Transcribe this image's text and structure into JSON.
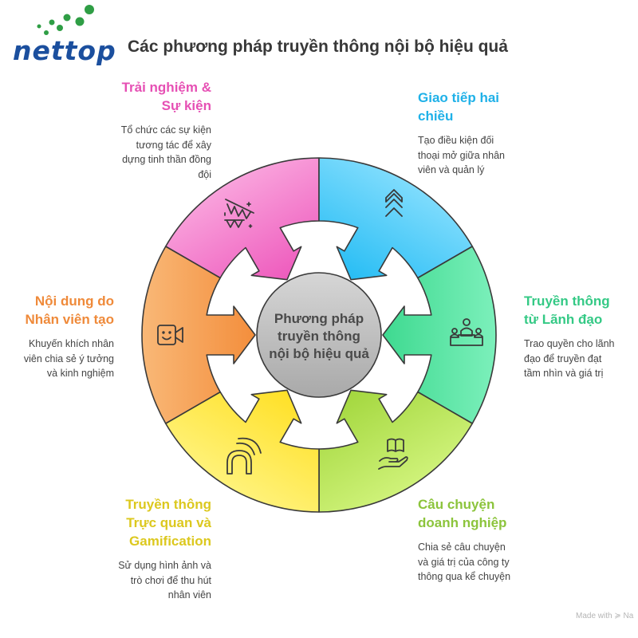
{
  "header": {
    "logo": "nettop",
    "title": "Các phương pháp truyền thông nội bộ hiệu quả"
  },
  "center": {
    "lines": [
      "Phương pháp",
      "truyền thông",
      "nội bộ hiệu quả"
    ]
  },
  "segments": [
    {
      "id": "events",
      "icon": "party-bunting-icon",
      "color": "#e650b4",
      "fill": [
        "#f9a3dc",
        "#ee5bbd"
      ],
      "title": [
        "Trải nghiệm &",
        "Sự kiện"
      ],
      "desc": [
        "Tổ chức các sự kiện",
        "tương tác để xây",
        "dựng tinh thần đồng",
        "đội"
      ]
    },
    {
      "id": "two-way",
      "icon": "chevrons-up-icon",
      "color": "#1fb1e8",
      "fill": [
        "#7fdcfd",
        "#27bdf4"
      ],
      "title": [
        "Giao tiếp hai",
        "chiều"
      ],
      "desc": [
        "Tạo điều kiện đối",
        "thoại mở giữa nhân",
        "viên và quản lý"
      ]
    },
    {
      "id": "leadership",
      "icon": "podium-people-icon",
      "color": "#34c985",
      "fill": [
        "#7cf0bb",
        "#3ed990"
      ],
      "title": [
        "Truyền thông",
        "từ Lãnh đạo"
      ],
      "desc": [
        "Trao quyền cho lãnh",
        "đạo để truyền đạt",
        "tầm nhìn và giá trị"
      ]
    },
    {
      "id": "storytelling",
      "icon": "hand-book-icon",
      "color": "#8cc43c",
      "fill": [
        "#cff279",
        "#a3d73e"
      ],
      "title": [
        "Câu chuyện",
        "doanh nghiệp"
      ],
      "desc": [
        "Chia sẻ câu chuyện",
        "và giá trị của công ty",
        "thông qua kể chuyện"
      ]
    },
    {
      "id": "visual",
      "icon": "magnet-signal-icon",
      "color": "#dcc81e",
      "fill": [
        "#fff27a",
        "#ffe026"
      ],
      "title": [
        "Truyền thông",
        "Trực quan và",
        "Gamification"
      ],
      "desc": [
        "Sử dụng hình ảnh và",
        "trò chơi để thu hút",
        "nhân viên"
      ]
    },
    {
      "id": "ugc",
      "icon": "video-camera-smile-icon",
      "color": "#ef8a3a",
      "fill": [
        "#f9b877",
        "#f38e3c"
      ],
      "title": [
        "Nội dung do",
        "Nhân viên tạo"
      ],
      "desc": [
        "Khuyến khích nhân",
        "viên chia sẻ ý tưởng",
        "và kinh nghiệm"
      ]
    }
  ],
  "footer": {
    "text": "Made with ≽ Na"
  }
}
